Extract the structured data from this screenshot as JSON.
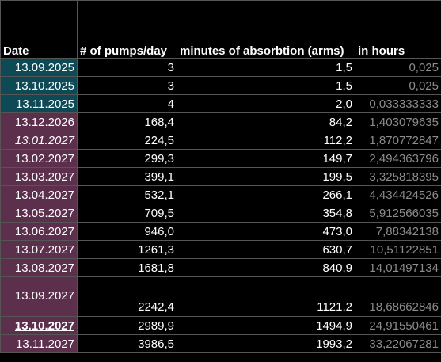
{
  "columns": {
    "date": "Date",
    "pumps": "# of pumps/day",
    "minutes": "minutes of absorbtion (arms)",
    "hours": "in hours"
  },
  "rows": [
    {
      "date": "13.09.2025",
      "pumps": "3",
      "minutes": "1,5",
      "hours": "0,025",
      "fill": "#0d4a55"
    },
    {
      "date": "13.10.2025",
      "pumps": "3",
      "minutes": "1,5",
      "hours": "0,025",
      "fill": "#0d4a55"
    },
    {
      "date": "13.11.2025",
      "pumps": "4",
      "minutes": "2,0",
      "hours": "0,033333333",
      "fill": "#0d4a55"
    },
    {
      "date": "13.12.2026",
      "pumps": "168,4",
      "minutes": "84,2",
      "hours": "1,403079635",
      "fill": "#5c2f4d"
    },
    {
      "date": "13.01.2027",
      "pumps": "224,5",
      "minutes": "112,2",
      "hours": "1,870772847",
      "fill": "#5c2f4d"
    },
    {
      "date": "13.02.2027",
      "pumps": "299,3",
      "minutes": "149,7",
      "hours": "2,494363796",
      "fill": "#5c2f4d"
    },
    {
      "date": "13.03.2027",
      "pumps": "399,1",
      "minutes": "199,5",
      "hours": "3,325818395",
      "fill": "#5c2f4d"
    },
    {
      "date": "13.04.2027",
      "pumps": "532,1",
      "minutes": "266,1",
      "hours": "4,434424526",
      "fill": "#5c2f4d"
    },
    {
      "date": "13.05.2027",
      "pumps": "709,5",
      "minutes": "354,8",
      "hours": "5,912566035",
      "fill": "#5c2f4d"
    },
    {
      "date": "13.06.2027",
      "pumps": "946,0",
      "minutes": "473,0",
      "hours": "7,88342138",
      "fill": "#5c2f4d"
    },
    {
      "date": "13.07.2027",
      "pumps": "1261,3",
      "minutes": "630,7",
      "hours": "10,51122851",
      "fill": "#5c2f4d"
    },
    {
      "date": "13.08.2027",
      "pumps": "1681,8",
      "minutes": "840,9",
      "hours": "14,01497134",
      "fill": "#5c2f4d"
    },
    {
      "date": "13.09.2027",
      "pumps": "2242,4",
      "minutes": "1121,2",
      "hours": "18,68662846",
      "fill": "#5c2f4d"
    },
    {
      "date": "13.10.2027",
      "pumps": "2989,9",
      "minutes": "1494,9",
      "hours": "24,91550461",
      "fill": "#5c2f4d"
    },
    {
      "date": "13.11.2027",
      "pumps": "3986,5",
      "minutes": "1993,2",
      "hours": "33,22067281",
      "fill": "#5c2f4d"
    }
  ]
}
